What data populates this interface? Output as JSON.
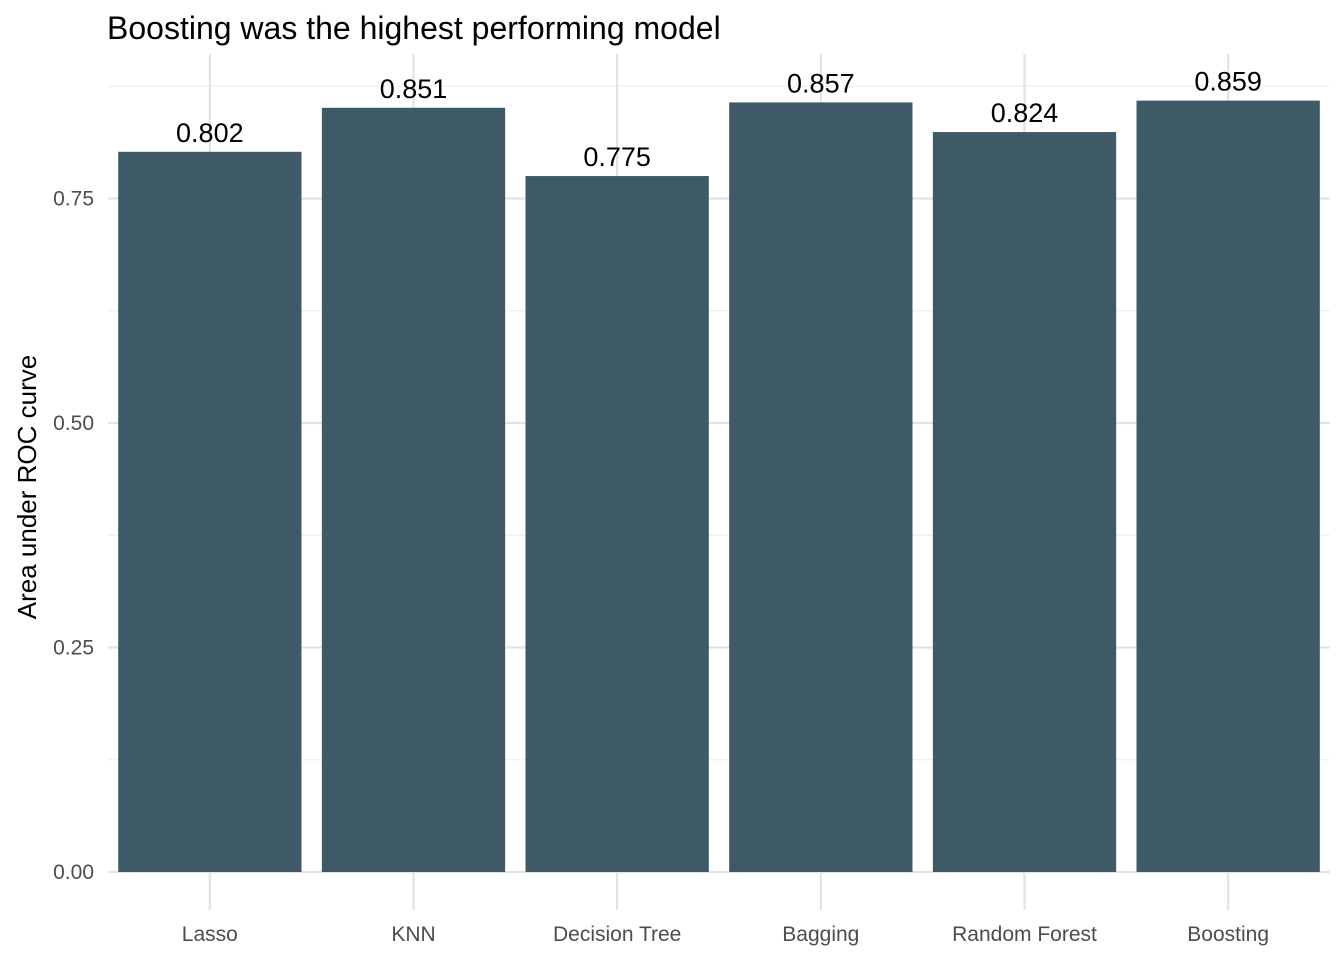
{
  "chart_data": {
    "type": "bar",
    "title": "Boosting was the highest performing model",
    "xlabel": "",
    "ylabel": "Area under ROC curve",
    "categories": [
      "Lasso",
      "KNN",
      "Decision Tree",
      "Bagging",
      "Random Forest",
      "Boosting"
    ],
    "values": [
      0.802,
      0.851,
      0.775,
      0.857,
      0.824,
      0.859
    ],
    "data_labels": [
      "0.802",
      "0.851",
      "0.775",
      "0.857",
      "0.824",
      "0.859"
    ],
    "ylim": [
      0,
      0.9
    ],
    "yticks": [
      0,
      0.25,
      0.5,
      0.75
    ],
    "ytick_labels": [
      "0.00",
      "0.25",
      "0.50",
      "0.75"
    ],
    "yminor": [
      0.125,
      0.375,
      0.625,
      0.875
    ],
    "grid": true,
    "legend": "none",
    "bar_color": "#3d5a66"
  }
}
